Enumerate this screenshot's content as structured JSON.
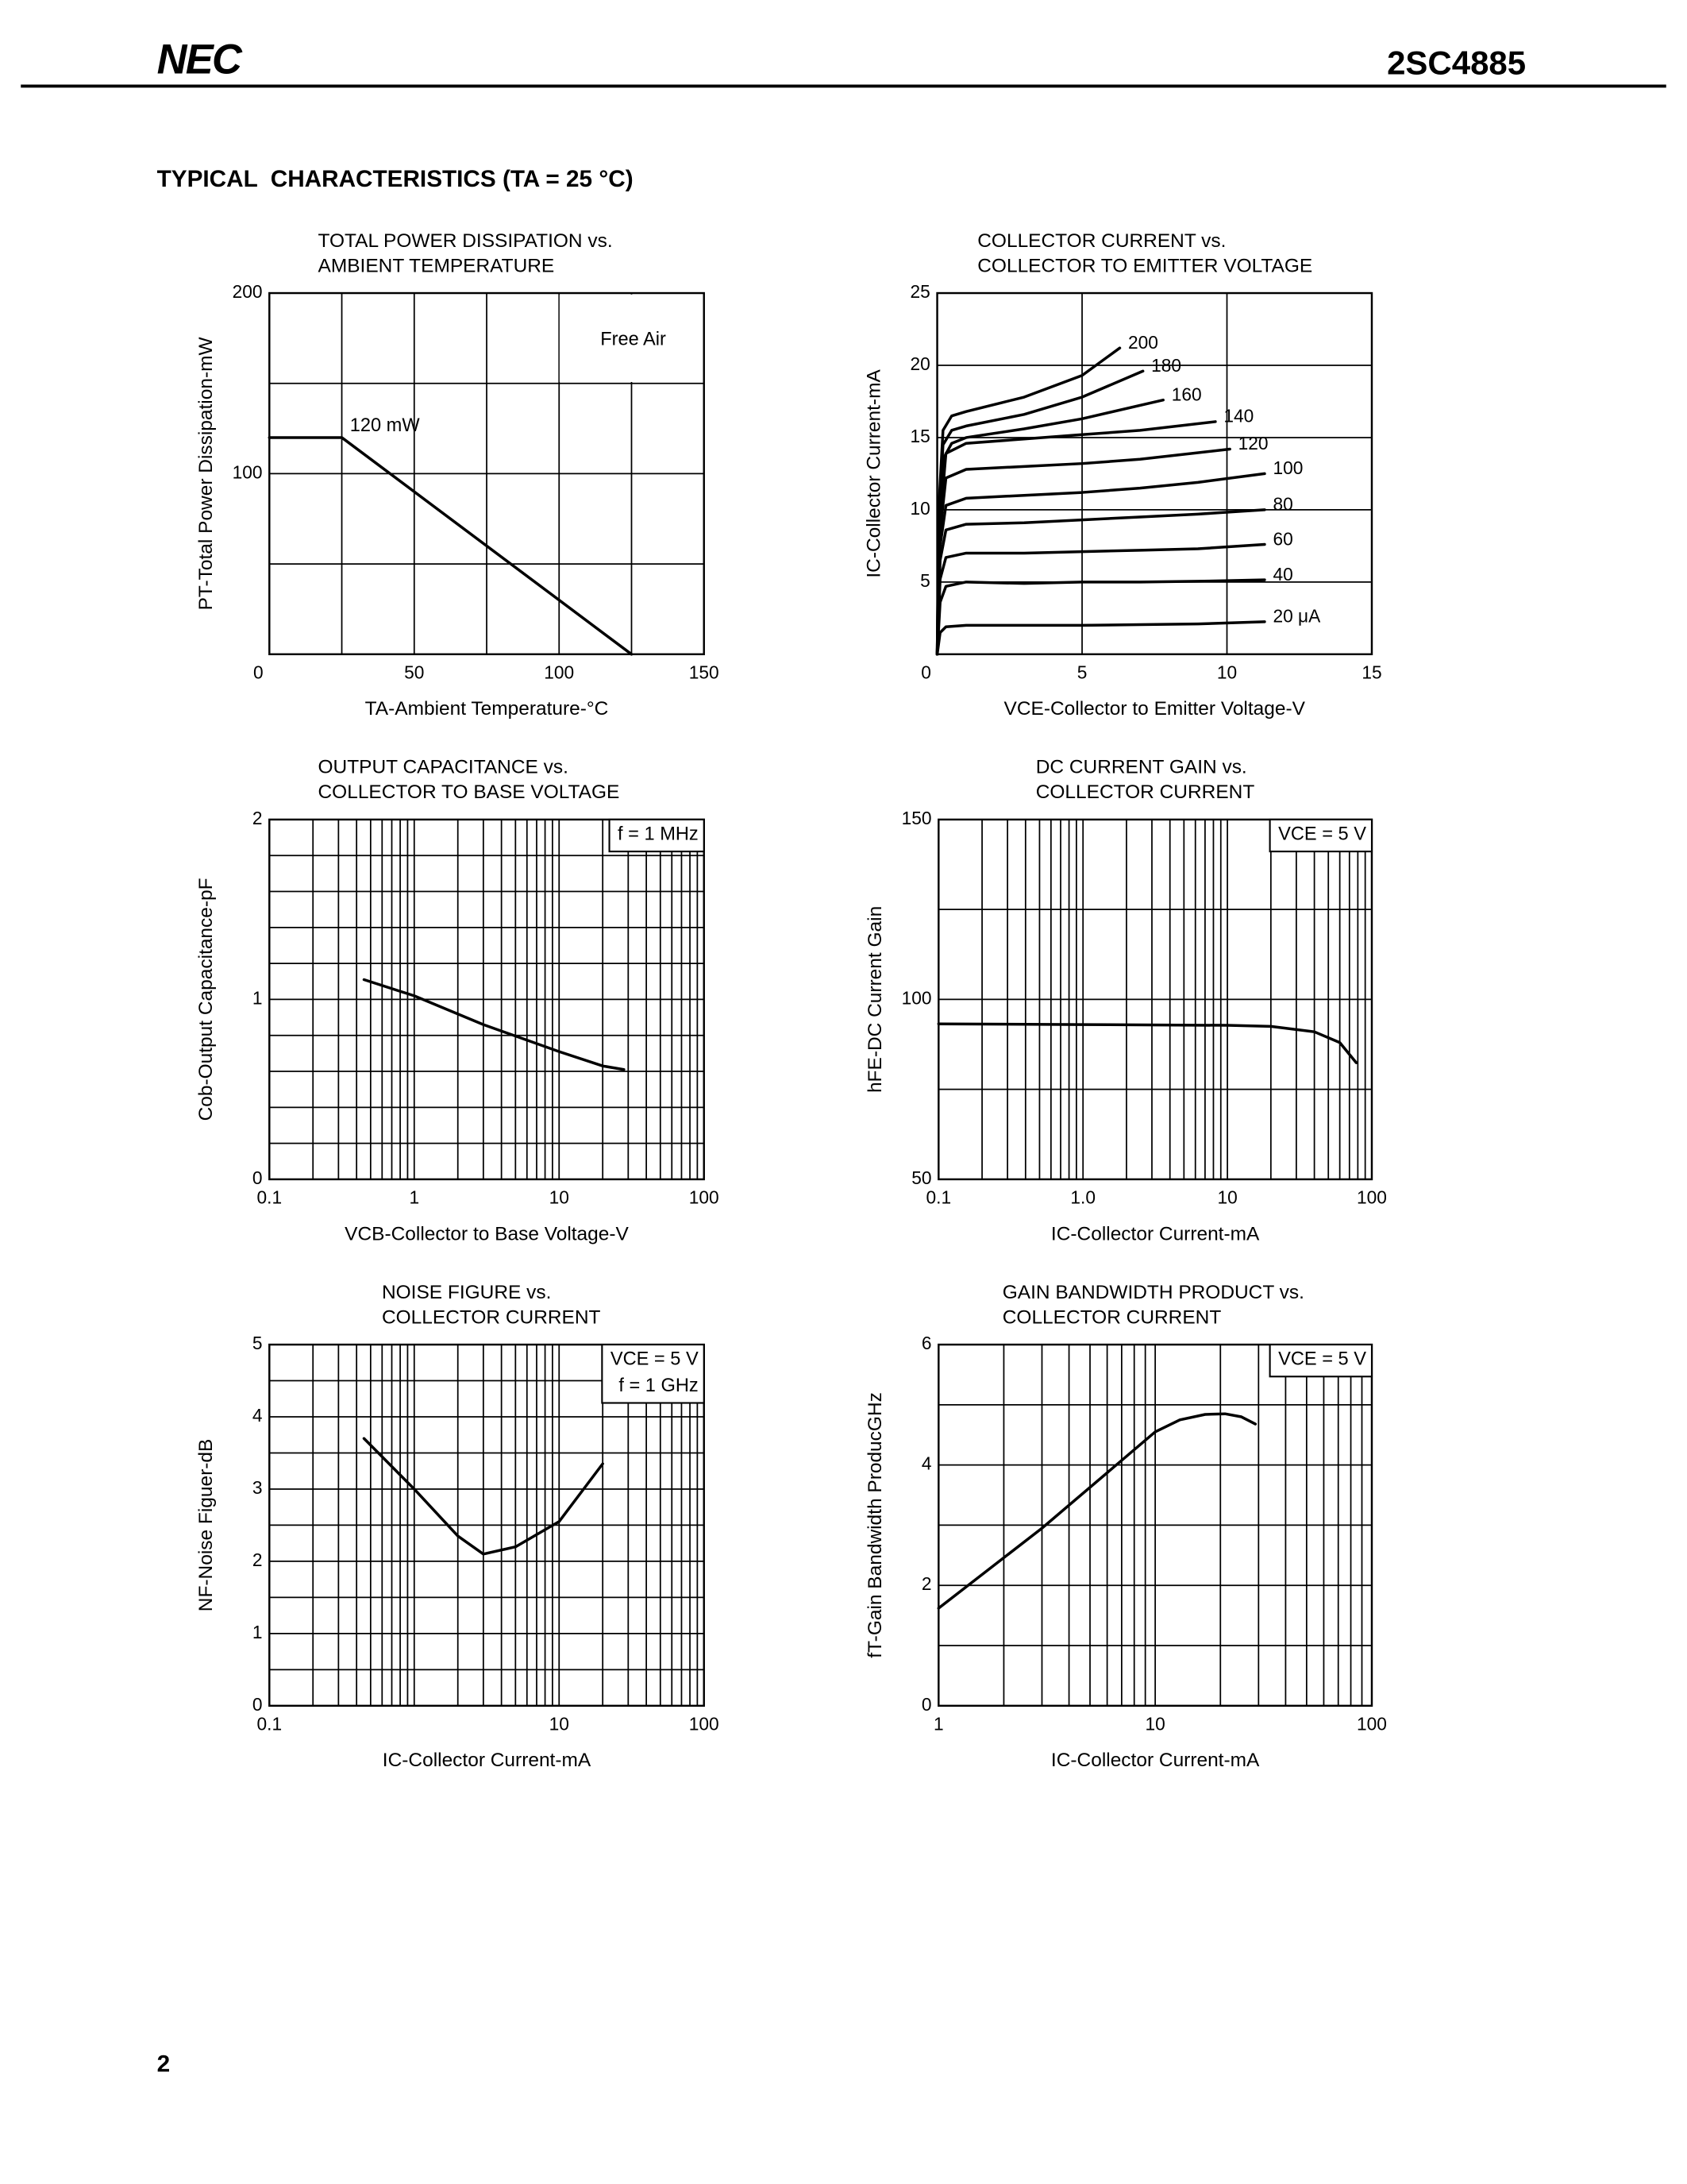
{
  "header": {
    "logo": "NEC",
    "part_number": "2SC4885"
  },
  "section_title": "TYPICAL  CHARACTERISTICS (TA = 25 °C)",
  "page_number": "2",
  "chart_data": [
    {
      "type": "line",
      "title": [
        "TOTAL POWER DISSIPATION vs.",
        "AMBIENT TEMPERATURE"
      ],
      "xlabel": "TA-Ambient Temperature-°C",
      "ylabel": "PT-Total Power Dissipation-mW",
      "xlim": [
        0,
        150
      ],
      "ylim": [
        0,
        200
      ],
      "xticks": [
        0,
        50,
        100,
        150
      ],
      "yticks": [
        100,
        200
      ],
      "x_grid": [
        25,
        50,
        75,
        100,
        125
      ],
      "y_grid": [
        50,
        100,
        150
      ],
      "annotations": [
        "120 mW",
        "Free Air"
      ],
      "series": [
        {
          "x": [
            0,
            25,
            125
          ],
          "values": [
            120,
            120,
            0
          ],
          "color": "#000000"
        }
      ]
    },
    {
      "type": "line",
      "title": [
        "COLLECTOR CURRENT vs.",
        "COLLECTOR TO EMITTER VOLTAGE"
      ],
      "xlabel": "VCE-Collector to Emitter Voltage-V",
      "ylabel": "IC-Collector Current-mA",
      "xlim": [
        0,
        15
      ],
      "ylim": [
        0,
        25
      ],
      "xticks": [
        0,
        5,
        10,
        15
      ],
      "yticks": [
        5,
        10,
        15,
        20,
        25
      ],
      "x_grid": [
        5,
        10
      ],
      "y_grid": [
        5,
        10,
        15,
        20
      ],
      "series": [
        {
          "name": "20 μA",
          "color": "#000000",
          "x": [
            0,
            0.1,
            0.3,
            1,
            3,
            5,
            7,
            9,
            11.3
          ],
          "values": [
            0,
            1.5,
            1.9,
            2.0,
            2.0,
            2.0,
            2.05,
            2.1,
            2.25
          ]
        },
        {
          "name": "40",
          "color": "#000000",
          "x": [
            0,
            0.1,
            0.3,
            1,
            3,
            5,
            7,
            9,
            11.3
          ],
          "values": [
            0,
            3.6,
            4.7,
            5.0,
            4.9,
            5.0,
            5.0,
            5.05,
            5.15
          ]
        },
        {
          "name": "60",
          "color": "#000000",
          "x": [
            0,
            0.1,
            0.3,
            1,
            3,
            5,
            7,
            9,
            11.3
          ],
          "values": [
            0,
            5.2,
            6.7,
            7.0,
            7.0,
            7.1,
            7.2,
            7.3,
            7.6
          ]
        },
        {
          "name": "80",
          "color": "#000000",
          "x": [
            0,
            0.1,
            0.3,
            1,
            3,
            5,
            7,
            9,
            11.3
          ],
          "values": [
            0,
            6.5,
            8.6,
            9.0,
            9.1,
            9.3,
            9.5,
            9.7,
            10.0
          ]
        },
        {
          "name": "100",
          "color": "#000000",
          "x": [
            0,
            0.1,
            0.3,
            1,
            3,
            5,
            7,
            9,
            11.3
          ],
          "values": [
            0,
            7.5,
            10.3,
            10.8,
            11.0,
            11.2,
            11.5,
            11.9,
            12.5
          ]
        },
        {
          "name": "120",
          "color": "#000000",
          "x": [
            0,
            0.1,
            0.3,
            1,
            3,
            5,
            7,
            10.1
          ],
          "values": [
            0,
            8.5,
            12.2,
            12.8,
            13.0,
            13.2,
            13.5,
            14.2
          ]
        },
        {
          "name": "140",
          "color": "#000000",
          "x": [
            0,
            0.1,
            0.3,
            1,
            3,
            5,
            7,
            9.6
          ],
          "values": [
            0,
            9.2,
            13.9,
            14.6,
            14.9,
            15.2,
            15.5,
            16.1
          ]
        },
        {
          "name": "160",
          "color": "#000000",
          "x": [
            0,
            0.05,
            0.2,
            0.5,
            1,
            3,
            5,
            7.8
          ],
          "values": [
            0,
            8.0,
            13.5,
            14.6,
            15.0,
            15.6,
            16.3,
            17.6
          ]
        },
        {
          "name": "180",
          "color": "#000000",
          "x": [
            0,
            0.05,
            0.2,
            0.5,
            1,
            3,
            5,
            7.1
          ],
          "values": [
            0,
            9.0,
            14.5,
            15.5,
            15.8,
            16.6,
            17.8,
            19.6
          ]
        },
        {
          "name": "200",
          "color": "#000000",
          "x": [
            0,
            0.05,
            0.2,
            0.5,
            1,
            3,
            5,
            6.3
          ],
          "values": [
            0,
            10.0,
            15.5,
            16.5,
            16.8,
            17.8,
            19.3,
            21.2
          ]
        }
      ]
    },
    {
      "type": "line",
      "title": [
        "OUTPUT CAPACITANCE vs.",
        "COLLECTOR TO BASE VOLTAGE"
      ],
      "xlabel": "VCB-Collector to Base Voltage-V",
      "ylabel": "Cob-Output Capacitance-pF",
      "xscale": "log",
      "xlim": [
        0.1,
        100
      ],
      "ylim": [
        0,
        2
      ],
      "xticks": [
        0.1,
        1,
        10,
        100
      ],
      "yticks": [
        0,
        1,
        2
      ],
      "x_grid": [
        0.2,
        0.3,
        0.4,
        0.5,
        0.6,
        0.7,
        0.8,
        0.9,
        1,
        2,
        3,
        4,
        5,
        6,
        7,
        8,
        9,
        10,
        20,
        30,
        40,
        50,
        60,
        70,
        80,
        90
      ],
      "y_grid": [
        0.2,
        0.4,
        0.6,
        0.8,
        1.0,
        1.2,
        1.4,
        1.6,
        1.8
      ],
      "annotations": [
        "f = 1 MHz"
      ],
      "series": [
        {
          "color": "#000000",
          "x": [
            0.45,
            1,
            3,
            10,
            20,
            28
          ],
          "values": [
            1.11,
            1.02,
            0.86,
            0.71,
            0.63,
            0.61
          ]
        }
      ]
    },
    {
      "type": "line",
      "title": [
        "DC CURRENT GAIN vs.",
        "COLLECTOR CURRENT"
      ],
      "xlabel": "IC-Collector Current-mA",
      "ylabel": "hFE-DC Current Gain",
      "xscale": "log",
      "xlim": [
        0.1,
        100
      ],
      "ylim": [
        50,
        150
      ],
      "xticks": [
        0.1,
        {
          "value": 1,
          "label": "1.0"
        },
        10,
        100
      ],
      "yticks": [
        50,
        100,
        150
      ],
      "x_grid": [
        0.2,
        0.3,
        0.4,
        0.5,
        0.6,
        0.7,
        0.8,
        0.9,
        1,
        2,
        3,
        4,
        5,
        6,
        7,
        8,
        9,
        10,
        20,
        30,
        40,
        50,
        60,
        70,
        80,
        90
      ],
      "y_grid": [
        75,
        100,
        125
      ],
      "annotations": [
        "VCE = 5 V"
      ],
      "series": [
        {
          "color": "#000000",
          "x": [
            0.1,
            1,
            10,
            20,
            40,
            60,
            78
          ],
          "values": [
            93.2,
            93,
            92.8,
            92.5,
            91,
            88,
            82.4
          ]
        }
      ]
    },
    {
      "type": "line",
      "title": [
        "NOISE FIGURE vs.",
        "COLLECTOR CURRENT"
      ],
      "xlabel": "IC-Collector Current-mA",
      "ylabel": "NF-Noise Figuer-dB",
      "xscale": "log",
      "xlim": [
        0.1,
        100
      ],
      "ylim": [
        0,
        5
      ],
      "xticks": [
        0.1,
        10,
        100
      ],
      "yticks": [
        0,
        1,
        2,
        3,
        4,
        5
      ],
      "x_grid": [
        0.2,
        0.3,
        0.4,
        0.5,
        0.6,
        0.7,
        0.8,
        0.9,
        1,
        2,
        3,
        4,
        5,
        6,
        7,
        8,
        9,
        10,
        20,
        30,
        40,
        50,
        60,
        70,
        80,
        90
      ],
      "y_grid": [
        0.5,
        1,
        1.5,
        2,
        2.5,
        3,
        3.5,
        4,
        4.5
      ],
      "annotations": [
        "VCE = 5 V",
        "f = 1 GHz"
      ],
      "series": [
        {
          "color": "#000000",
          "x": [
            0.45,
            1,
            2,
            3,
            5,
            10,
            20
          ],
          "values": [
            3.7,
            3.0,
            2.35,
            2.1,
            2.2,
            2.55,
            3.35
          ]
        }
      ]
    },
    {
      "type": "line",
      "title": [
        "GAIN BANDWIDTH PRODUCT vs.",
        "COLLECTOR CURRENT"
      ],
      "xlabel": "IC-Collector Current-mA",
      "ylabel": "fT-Gain Bandwidth ProducGHz",
      "xscale": "log",
      "xlim": [
        1,
        100
      ],
      "ylim": [
        0,
        6
      ],
      "xticks": [
        1,
        10,
        100
      ],
      "yticks": [
        0,
        2,
        4,
        6
      ],
      "x_grid": [
        2,
        3,
        4,
        5,
        6,
        7,
        8,
        9,
        10,
        20,
        30,
        40,
        50,
        60,
        70,
        80,
        90
      ],
      "y_grid": [
        1,
        2,
        3,
        4,
        5
      ],
      "annotations": [
        "VCE = 5 V"
      ],
      "series": [
        {
          "color": "#000000",
          "x": [
            1,
            3,
            10,
            13,
            17,
            21,
            25,
            29
          ],
          "values": [
            1.62,
            2.95,
            4.55,
            4.75,
            4.84,
            4.85,
            4.8,
            4.68
          ]
        }
      ]
    }
  ]
}
